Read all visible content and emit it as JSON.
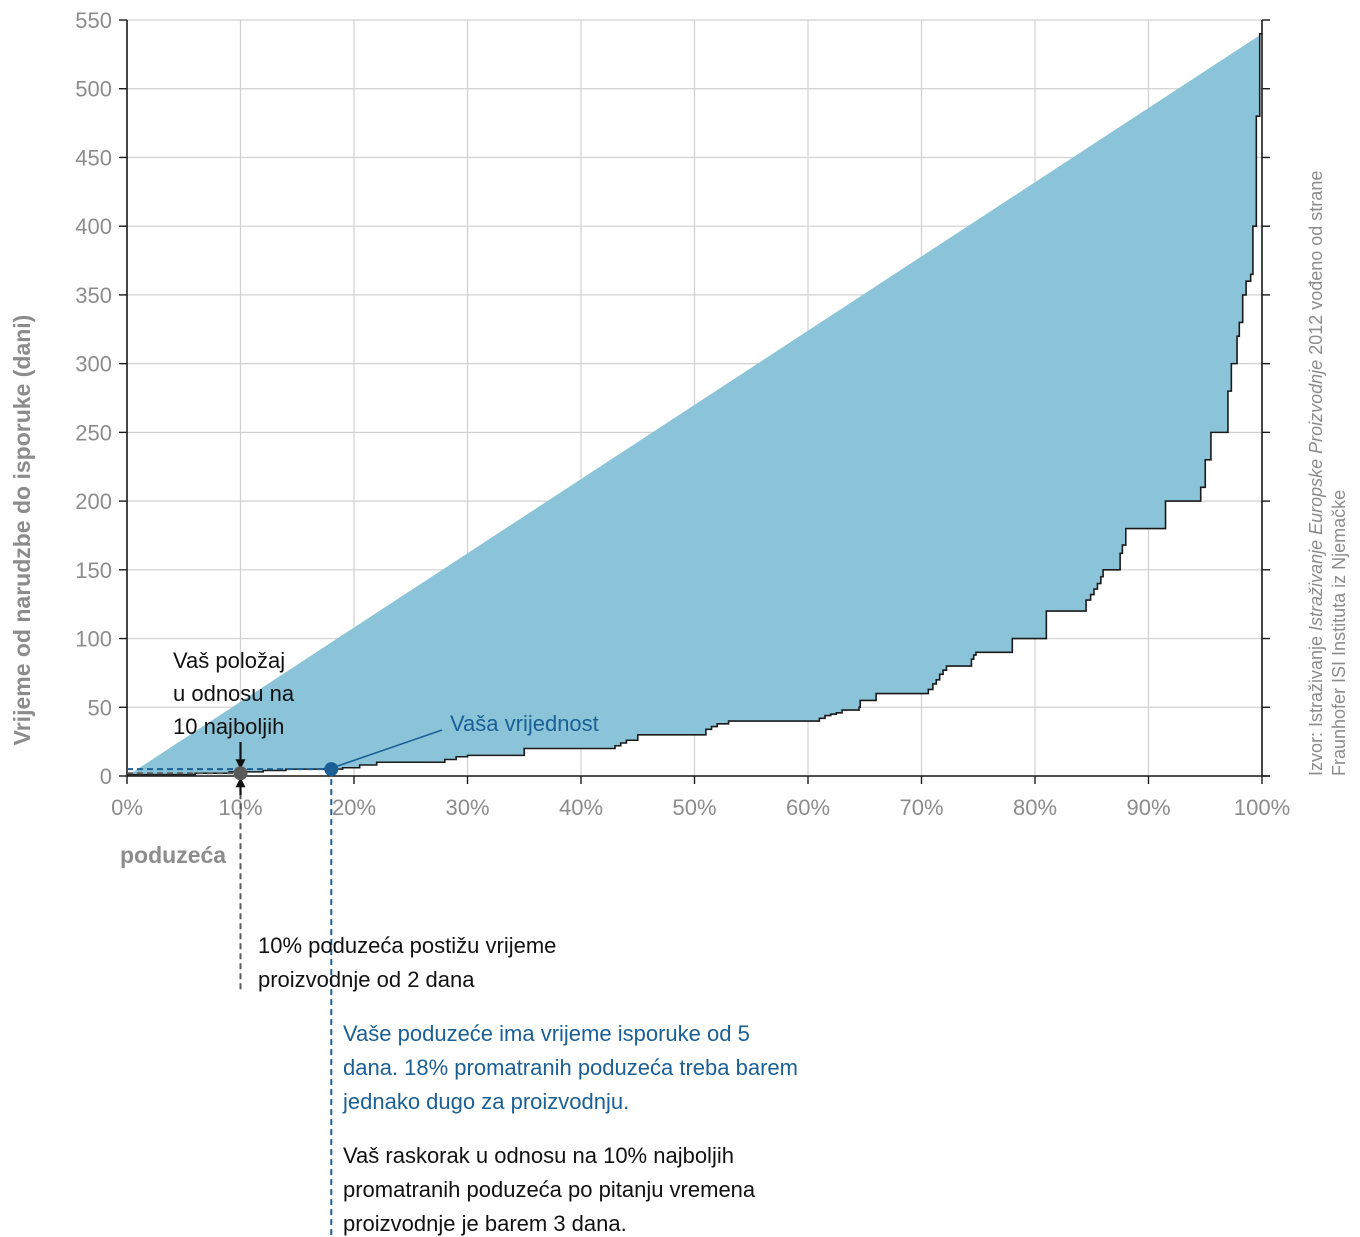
{
  "chart_data": {
    "type": "area",
    "xlabel": "poduzeća",
    "ylabel": "Vrijeme od narudzbe do isporuke (dani)",
    "xlim": [
      0,
      100
    ],
    "ylim": [
      0,
      550
    ],
    "x_ticks": [
      0,
      10,
      20,
      30,
      40,
      50,
      60,
      70,
      80,
      90,
      100
    ],
    "x_tick_labels": [
      "0%",
      "10%",
      "20%",
      "30%",
      "40%",
      "50%",
      "60%",
      "70%",
      "80%",
      "90%",
      "100%"
    ],
    "y_ticks": [
      0,
      50,
      100,
      150,
      200,
      250,
      300,
      350,
      400,
      450,
      500,
      550
    ],
    "y_tick_labels": [
      "0",
      "50",
      "100",
      "150",
      "200",
      "250",
      "300",
      "350",
      "400",
      "450",
      "500",
      "550"
    ],
    "grid": true,
    "series": [
      {
        "step": true,
        "x": [
          0,
          6,
          7,
          9,
          12,
          14,
          19,
          20.5,
          22,
          28,
          29,
          30,
          35,
          43,
          43.5,
          44,
          45,
          51,
          51.5,
          52,
          53,
          61,
          61.5,
          62,
          62.5,
          63,
          64.5,
          64.6,
          66,
          70.6,
          71,
          71.3,
          71.6,
          71.9,
          72.2,
          74.4,
          74.6,
          74.8,
          77.5,
          78,
          81,
          84.5,
          84.9,
          85.2,
          85.5,
          85.8,
          86,
          86.5,
          87.5,
          87.7,
          88,
          91,
          91.5,
          94.6,
          95,
          95.5,
          96.8,
          97,
          97.3,
          97.5,
          97.8,
          98,
          98.3,
          98.6,
          99,
          99.2,
          99.5,
          99.8,
          100
        ],
        "y": [
          1,
          2,
          2,
          3,
          4,
          5,
          6,
          8,
          10,
          12,
          14,
          15,
          20,
          22,
          24,
          26,
          30,
          34,
          36,
          38,
          40,
          42,
          44,
          45,
          46,
          48,
          50,
          55,
          60,
          63,
          67,
          70,
          74,
          77,
          80,
          85,
          88,
          90,
          90,
          100,
          120,
          128,
          132,
          136,
          140,
          145,
          150,
          150,
          162,
          168,
          180,
          180,
          200,
          210,
          230,
          250,
          250,
          280,
          300,
          300,
          320,
          330,
          350,
          360,
          365,
          400,
          480,
          540,
          540
        ],
        "fill_color": "#8bc4d8",
        "line_color": "#1a1a1a"
      }
    ],
    "markers": [
      {
        "name": "top10",
        "x": 10,
        "y": 2,
        "color": "#5a5a5a"
      },
      {
        "name": "your_value",
        "x": 18,
        "y": 5,
        "color": "#1a5f96"
      }
    ]
  },
  "annotations": {
    "best10_lines": [
      "Vaš položaj",
      "u odnosu na",
      "10 najboljih"
    ],
    "your_value_label": "Vaša vrijednost",
    "top10_text_lines": [
      "10% poduzeća postižu vrijeme",
      "proizvodnje od  2 dana"
    ],
    "blue_text_lines": [
      "Vaše poduzeće ima vrijeme isporuke od 5",
      "dana. 18% promatranih poduzeća treba barem",
      "jednako dugo za proizvodnju."
    ],
    "gap_text_lines": [
      "Vaš raskorak u odnosu na 10% najboljih",
      "promatranih poduzeća po pitanju vremena",
      "proizvodnje je barem 3 dana."
    ]
  },
  "source": {
    "prefix": "Izvor: Istraživanje ",
    "italic": "Istraživanje Europske Proizvodnje",
    "suffix": " 2012 vođeno od strane",
    "line2": "Fraunhofer ISI Instituta iz Njemačke"
  },
  "colors": {
    "area_fill": "#8bc4d8",
    "outline": "#1a1a1a",
    "grid": "#d0d0d0",
    "muted_text": "#8c8c8c",
    "blue": "#1a5f96",
    "dark_marker": "#5a5a5a"
  }
}
